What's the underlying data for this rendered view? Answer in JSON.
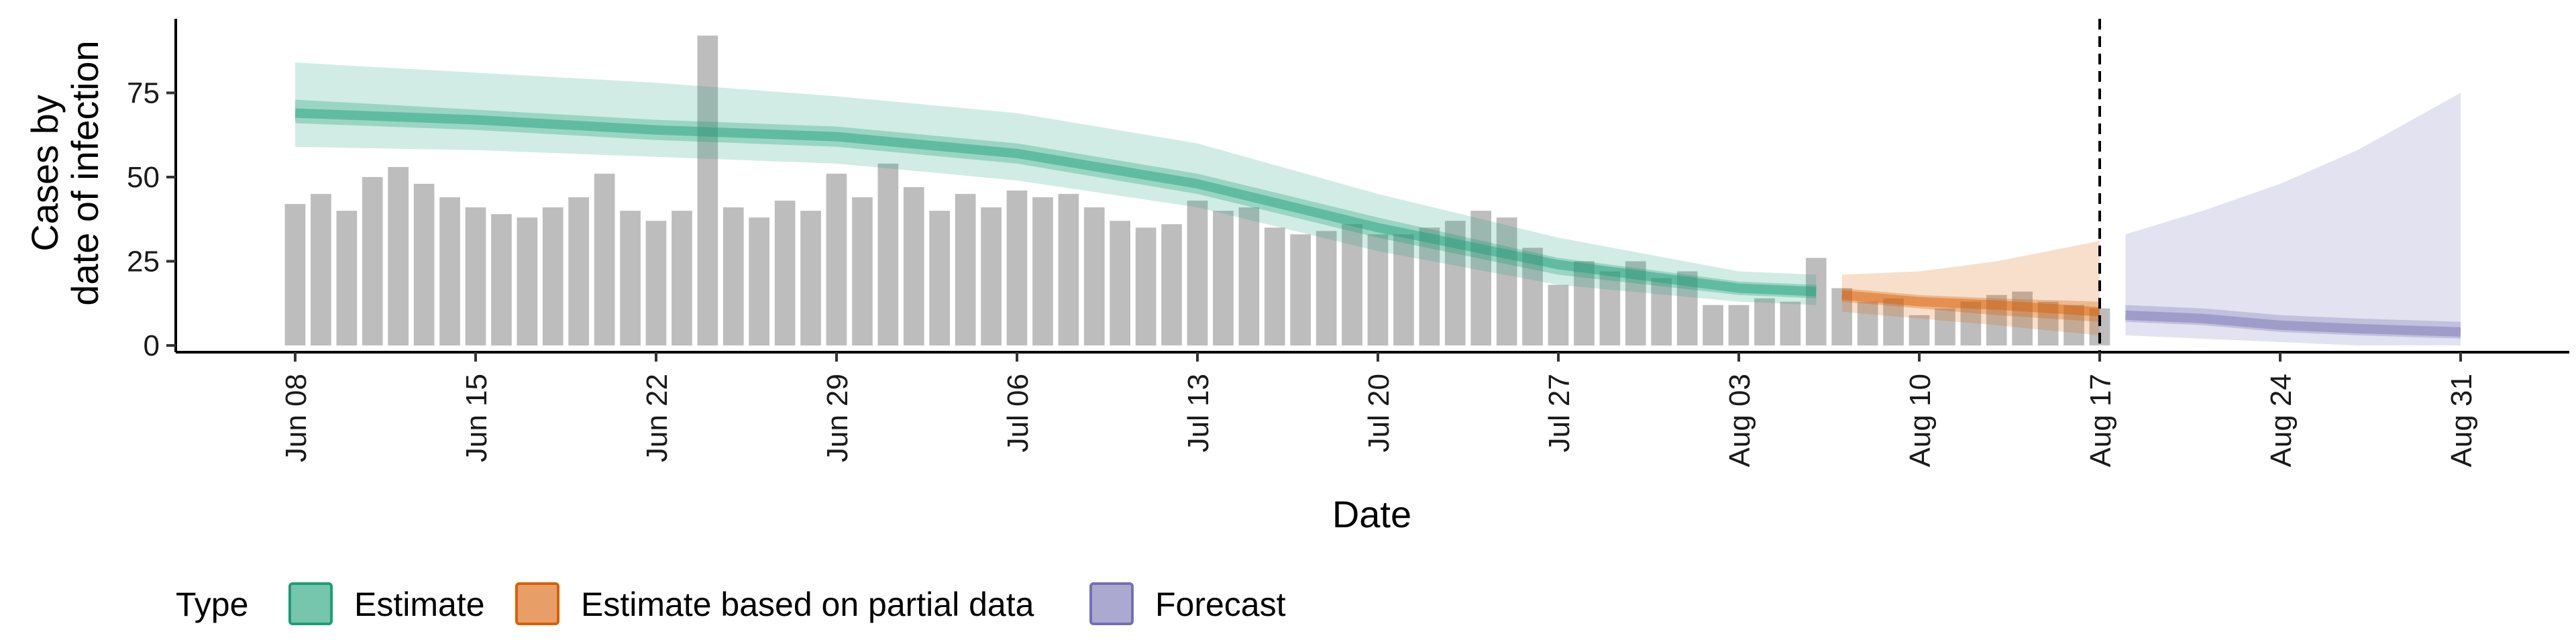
{
  "chart_data": {
    "type": "bar",
    "xlabel": "Date",
    "ylabel_lines": [
      "Cases by",
      "date of infection"
    ],
    "ylim": [
      -2,
      97
    ],
    "y_ticks": [
      0,
      25,
      50,
      75
    ],
    "x_domain": [
      "2020-06-08",
      "2020-08-31"
    ],
    "x_ticks": [
      {
        "date": "2020-06-08",
        "label": "Jun 08"
      },
      {
        "date": "2020-06-15",
        "label": "Jun 15"
      },
      {
        "date": "2020-06-22",
        "label": "Jun 22"
      },
      {
        "date": "2020-06-29",
        "label": "Jun 29"
      },
      {
        "date": "2020-07-06",
        "label": "Jul 06"
      },
      {
        "date": "2020-07-13",
        "label": "Jul 13"
      },
      {
        "date": "2020-07-20",
        "label": "Jul 20"
      },
      {
        "date": "2020-07-27",
        "label": "Jul 27"
      },
      {
        "date": "2020-08-03",
        "label": "Aug 03"
      },
      {
        "date": "2020-08-10",
        "label": "Aug 10"
      },
      {
        "date": "2020-08-17",
        "label": "Aug 17"
      },
      {
        "date": "2020-08-24",
        "label": "Aug 24"
      },
      {
        "date": "2020-08-31",
        "label": "Aug 31"
      }
    ],
    "grid": false,
    "reference_line": {
      "date": "2020-08-17",
      "style": "dashed"
    },
    "bars": {
      "start_date": "2020-06-08",
      "color": "#bdbdbd",
      "values": [
        42,
        45,
        40,
        50,
        53,
        48,
        44,
        41,
        39,
        38,
        41,
        44,
        51,
        40,
        37,
        40,
        92,
        41,
        38,
        43,
        40,
        51,
        44,
        54,
        47,
        40,
        45,
        41,
        46,
        44,
        45,
        41,
        37,
        35,
        36,
        43,
        40,
        41,
        35,
        33,
        34,
        36,
        33,
        33,
        35,
        37,
        40,
        38,
        29,
        18,
        25,
        22,
        25,
        20,
        22,
        12,
        12,
        14,
        13,
        26,
        17,
        13,
        14,
        9,
        11,
        13,
        15,
        16,
        13,
        12,
        11
      ]
    },
    "series": [
      {
        "name": "Estimate",
        "color": "#1b9e77",
        "dates": [
          "2020-06-08",
          "2020-06-15",
          "2020-06-22",
          "2020-06-29",
          "2020-07-06",
          "2020-07-13",
          "2020-07-20",
          "2020-07-27",
          "2020-08-03",
          "2020-08-06"
        ],
        "median": [
          69,
          67,
          64,
          62,
          57,
          48,
          35,
          24,
          17,
          16
        ],
        "inner_low": [
          66,
          64,
          61,
          59,
          54,
          45,
          32,
          21,
          15,
          14
        ],
        "inner_high": [
          73,
          70,
          67,
          65,
          60,
          51,
          38,
          26,
          19,
          18
        ],
        "outer_low": [
          59,
          58,
          56,
          54,
          49,
          41,
          28,
          18,
          13,
          12
        ],
        "outer_high": [
          84,
          81,
          78,
          74,
          69,
          60,
          45,
          32,
          22,
          21
        ]
      },
      {
        "name": "Estimate based on partial data",
        "color": "#d95f02",
        "dates": [
          "2020-08-07",
          "2020-08-10",
          "2020-08-13",
          "2020-08-17"
        ],
        "median": [
          15,
          13,
          12,
          10
        ],
        "inner_low": [
          13,
          11,
          9,
          7
        ],
        "inner_high": [
          17,
          15,
          14,
          13
        ],
        "outer_low": [
          10,
          8,
          6,
          3
        ],
        "outer_high": [
          21,
          22,
          25,
          31
        ]
      },
      {
        "name": "Forecast",
        "color": "#7570b3",
        "dates": [
          "2020-08-18",
          "2020-08-21",
          "2020-08-24",
          "2020-08-27",
          "2020-08-31"
        ],
        "median": [
          9,
          8,
          6,
          5,
          4
        ],
        "inner_low": [
          7,
          6,
          4,
          3,
          2
        ],
        "inner_high": [
          12,
          11,
          9,
          8,
          7
        ],
        "outer_low": [
          3,
          2,
          1,
          0,
          0
        ],
        "outer_high": [
          33,
          40,
          48,
          58,
          75
        ]
      }
    ],
    "legend": {
      "title": "Type",
      "placement": "bottom",
      "items": [
        {
          "label": "Estimate",
          "color": "#1b9e77"
        },
        {
          "label": "Estimate based on partial data",
          "color": "#d95f02"
        },
        {
          "label": "Forecast",
          "color": "#7570b3"
        }
      ]
    }
  }
}
